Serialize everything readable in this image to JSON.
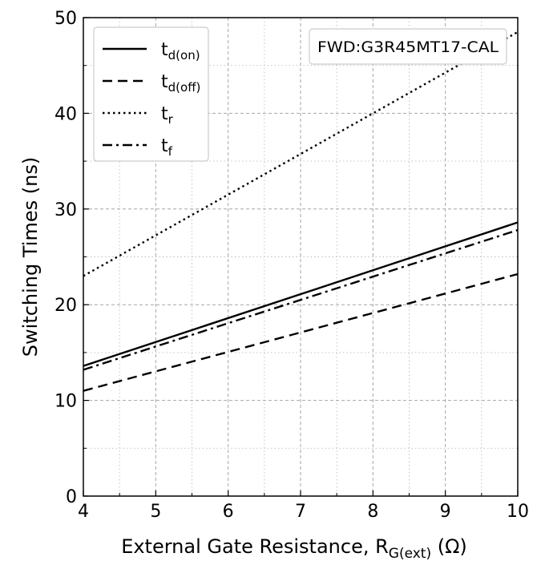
{
  "chart_data": {
    "type": "line",
    "xlabel_main": "External Gate Resistance, R",
    "xlabel_sub": "G(ext)",
    "xlabel_unit": " (Ω)",
    "ylabel": "Switching Times (ns)",
    "xlim": [
      4,
      10
    ],
    "ylim": [
      0,
      50
    ],
    "grid": true,
    "legend_position": "top-left",
    "annotation": "FWD:G3R45MT17-CAL",
    "x_ticks": [
      "4",
      "5",
      "6",
      "7",
      "8",
      "9",
      "10"
    ],
    "y_ticks": [
      "0",
      "10",
      "20",
      "30",
      "40",
      "50"
    ],
    "series": [
      {
        "name_main": "t",
        "name_sub": "d(on)",
        "style": "solid",
        "x": [
          4,
          10
        ],
        "y": [
          13.6,
          28.6
        ]
      },
      {
        "name_main": "t",
        "name_sub": "d(off)",
        "style": "dashed",
        "x": [
          4,
          10
        ],
        "y": [
          11.0,
          23.2
        ]
      },
      {
        "name_main": "t",
        "name_sub": "r",
        "style": "dotted",
        "x": [
          4,
          10
        ],
        "y": [
          23.0,
          48.5
        ]
      },
      {
        "name_main": "t",
        "name_sub": "f",
        "style": "dashdot",
        "x": [
          4,
          10
        ],
        "y": [
          13.2,
          27.8
        ]
      }
    ]
  }
}
